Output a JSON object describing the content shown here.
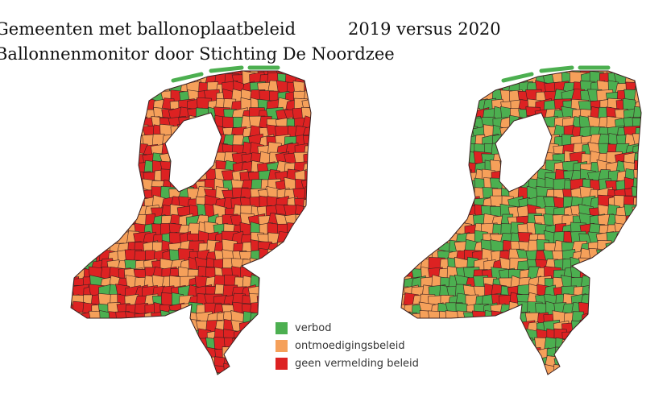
{
  "title": "Gemeenten met ballonoplaatbeleid",
  "subtitle": "Ballonnenmonitor door Stichting De Noordzee",
  "comparison": "2019 versus 2020",
  "colors": {
    "verbod": "#4caf50",
    "ontmoediging": "#f5a05a",
    "geen": "#dd2222",
    "border": "#3a2020",
    "water": "#ffffff"
  },
  "legend": [
    {
      "label": "verbod",
      "color": "#4caf50"
    },
    {
      "label": "ontmoedigingsbeleid",
      "color": "#f5a05a"
    },
    {
      "label": "geen vermelding beleid",
      "color": "#dd2222"
    }
  ],
  "maps": [
    {
      "year": "2019",
      "dominant": "geen vermelding beleid"
    },
    {
      "year": "2020",
      "dominant": "verbod"
    }
  ]
}
